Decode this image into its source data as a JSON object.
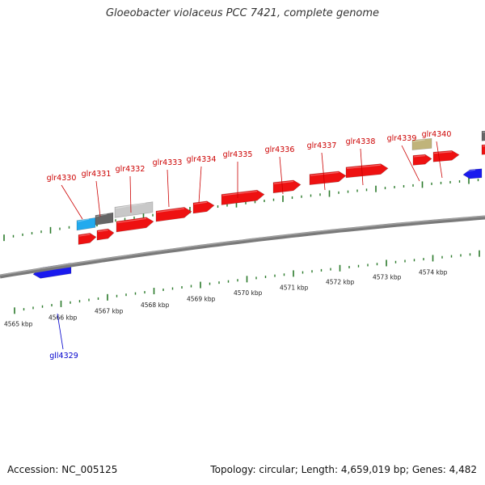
{
  "title": "Gloeobacter violaceus PCC 7421, complete genome",
  "footer": {
    "accession": "Accession: NC_005125",
    "stats": "Topology: circular; Length: 4,659,019 bp; Genes: 4,482"
  },
  "colors": {
    "forward_gene": "#ee1111",
    "reverse_gene": "#1a1aee",
    "cyan_feature": "#22aaee",
    "dark_gray_feature": "#666666",
    "light_gray_feature": "#c8c8c8",
    "olive_feature": "#c0b47a",
    "backbone": "#7a7a7a",
    "tick": "#2a7a2a",
    "forward_label": "#cc0000",
    "reverse_label": "#0000cc"
  },
  "scale_labels": [
    "4565 kbp",
    "4566 kbp",
    "4567 kbp",
    "4568 kbp",
    "4569 kbp",
    "4570 kbp",
    "4571 kbp",
    "4572 kbp",
    "4573 kbp",
    "4574 kbp"
  ],
  "forward_labels": [
    "glr4330",
    "glr4331",
    "glr4332",
    "glr4333",
    "glr4334",
    "glr4335",
    "glr4336",
    "glr4337",
    "glr4338",
    "glr4339",
    "glr4340"
  ],
  "reverse_labels": [
    "gll4329"
  ]
}
